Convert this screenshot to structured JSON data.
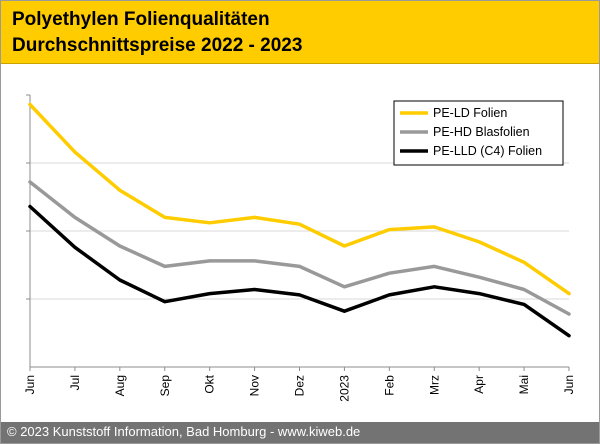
{
  "header": {
    "title_line1": "Polyethylen Folienqualitäten",
    "title_line2": "Durchschnittspreise 2022 - 2023",
    "background": "#ffcc00"
  },
  "footer": {
    "text": "© 2023 Kunststoff Information, Bad Homburg - www.kiweb.de"
  },
  "chart_data": {
    "type": "line",
    "title": "",
    "xlabel": "",
    "ylabel": "",
    "y_tick_labels_shown": false,
    "grid": "horizontal",
    "legend": "top-right",
    "ylim": [
      0,
      100
    ],
    "categories": [
      "Jun",
      "Jul",
      "Aug",
      "Sep",
      "Okt",
      "Nov",
      "Dez",
      "2023",
      "Feb",
      "Mrz",
      "Apr",
      "Mai",
      "Jun"
    ],
    "series": [
      {
        "name": "PE-LD Folien",
        "color": "#ffcc00",
        "values": [
          96.5,
          79,
          65,
          55,
          53,
          55,
          52.5,
          44.5,
          50.5,
          51.5,
          46,
          38.5,
          27
        ]
      },
      {
        "name": "PE-HD Blasfolien",
        "color": "#999999",
        "values": [
          68,
          55,
          44.5,
          37,
          39,
          39,
          37,
          29.5,
          34.5,
          37,
          33,
          28.5,
          19.5
        ]
      },
      {
        "name": "PE-LLD (C4) Folien",
        "color": "#000000",
        "values": [
          59,
          44,
          32,
          24,
          27,
          28.5,
          26.5,
          20.5,
          26.5,
          29.5,
          27,
          23,
          11.5
        ]
      }
    ]
  }
}
